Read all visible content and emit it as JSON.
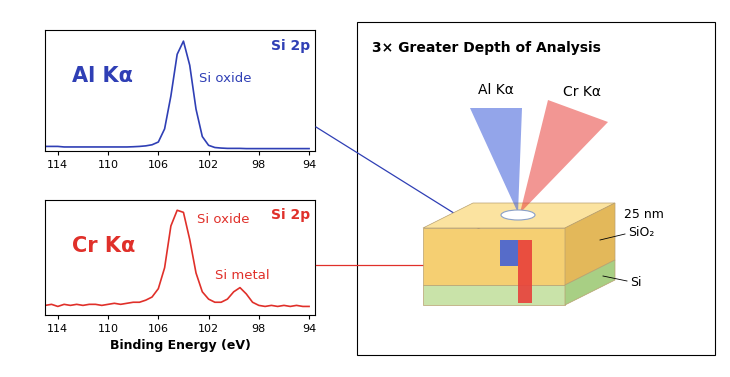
{
  "chart_data": [
    {
      "type": "line",
      "annotations": [
        "Al Kα",
        "Si 2p",
        "Si oxide"
      ],
      "color": "#2f3fb5",
      "x": [
        115,
        114.5,
        114,
        113.5,
        113,
        112.5,
        112,
        111.5,
        111,
        110.5,
        110,
        109.5,
        109,
        108.5,
        108,
        107.5,
        107,
        106.5,
        106,
        105.5,
        105,
        104.5,
        104,
        103.5,
        103,
        102.5,
        102,
        101.5,
        101,
        100.5,
        100,
        99.5,
        99,
        98.5,
        98,
        97.5,
        97,
        96.5,
        96,
        95.5,
        95,
        94.5,
        94
      ],
      "values": [
        0.04,
        0.04,
        0.04,
        0.035,
        0.035,
        0.035,
        0.035,
        0.035,
        0.035,
        0.035,
        0.035,
        0.035,
        0.035,
        0.035,
        0.037,
        0.04,
        0.045,
        0.055,
        0.08,
        0.2,
        0.5,
        0.88,
        1.0,
        0.78,
        0.38,
        0.13,
        0.05,
        0.03,
        0.025,
        0.022,
        0.022,
        0.022,
        0.02,
        0.02,
        0.02,
        0.02,
        0.02,
        0.02,
        0.02,
        0.02,
        0.02,
        0.02,
        0.02
      ],
      "xlim": [
        115,
        93.5
      ],
      "xticks": [
        114,
        110,
        106,
        102,
        98,
        94
      ],
      "ylim": [
        0,
        1.1
      ],
      "tick_labels": "x"
    },
    {
      "type": "line",
      "annotations": [
        "Cr Kα",
        "Si 2p",
        "Si oxide",
        "Si metal"
      ],
      "color": "#e0302a",
      "x": [
        115,
        114.5,
        114,
        113.5,
        113,
        112.5,
        112,
        111.5,
        111,
        110.5,
        110,
        109.5,
        109,
        108.5,
        108,
        107.5,
        107,
        106.5,
        106,
        105.5,
        105,
        104.5,
        104,
        103.5,
        103,
        102.5,
        102,
        101.5,
        101,
        100.5,
        100,
        99.5,
        99,
        98.5,
        98,
        97.5,
        97,
        96.5,
        96,
        95.5,
        95,
        94.5,
        94
      ],
      "values": [
        0.09,
        0.1,
        0.08,
        0.1,
        0.09,
        0.1,
        0.09,
        0.1,
        0.1,
        0.09,
        0.1,
        0.11,
        0.1,
        0.11,
        0.12,
        0.12,
        0.14,
        0.17,
        0.25,
        0.45,
        0.85,
        1.0,
        0.98,
        0.72,
        0.4,
        0.22,
        0.15,
        0.12,
        0.12,
        0.15,
        0.22,
        0.26,
        0.2,
        0.12,
        0.09,
        0.08,
        0.09,
        0.08,
        0.09,
        0.08,
        0.09,
        0.08,
        0.08
      ],
      "xlim": [
        115,
        93.5
      ],
      "xticks": [
        114,
        110,
        106,
        102,
        98,
        94
      ],
      "ylim": [
        0,
        1.1
      ],
      "tick_labels": "x",
      "x_label": "Binding Energy (eV)"
    }
  ],
  "diagram": {
    "title": "3× Greater Depth of Analysis",
    "beams": [
      "Al Kα",
      "Cr Kα"
    ],
    "layers": {
      "top": {
        "thickness": "25 nm",
        "label": "SiO₂"
      },
      "bottom": {
        "label": "Si"
      }
    }
  }
}
